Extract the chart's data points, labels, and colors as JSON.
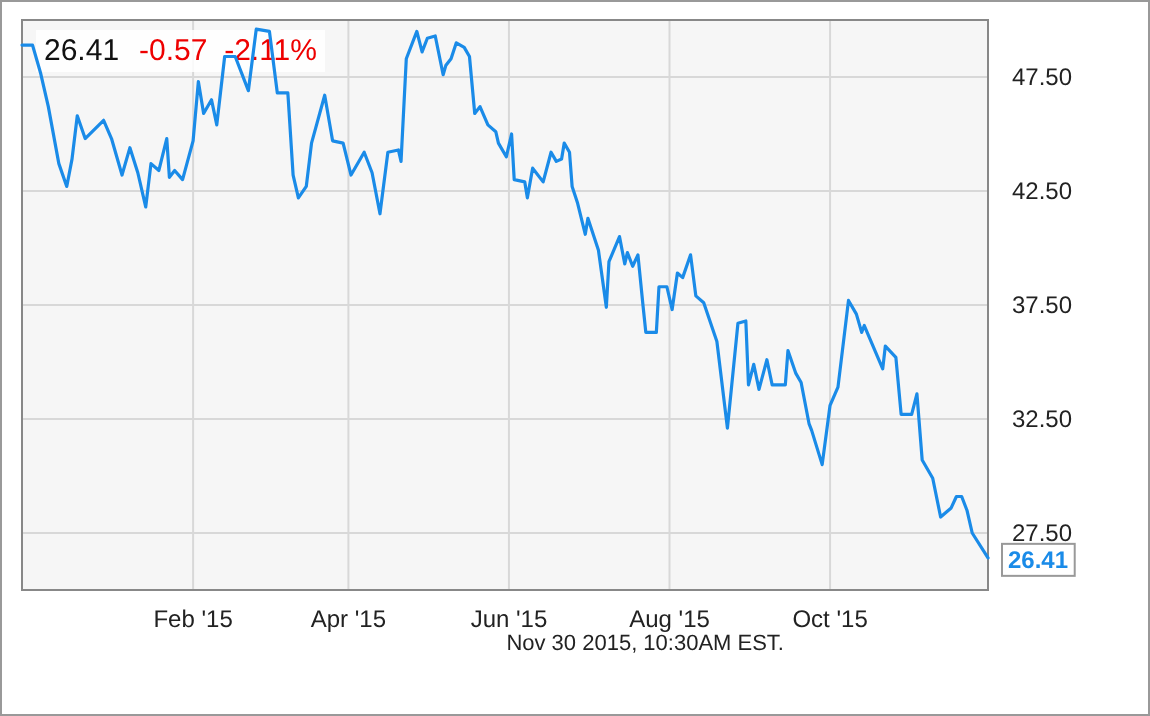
{
  "chart_data": {
    "type": "line",
    "title": "26.41",
    "subtitle": "-0.57  -2.11%",
    "annotations": [
      {
        "text": "26.41",
        "x": "2015-11-30",
        "y": 26.41
      },
      "Nov 30 2015, 10:30AM EST."
    ],
    "xlim": [
      "2014-11-28",
      "2015-11-30"
    ],
    "ylim": [
      25,
      50
    ],
    "xticks": [
      {
        "value": "2015-02-01",
        "label": "Feb '15"
      },
      {
        "value": "2015-04-01",
        "label": "Apr '15"
      },
      {
        "value": "2015-06-01",
        "label": "Jun '15"
      },
      {
        "value": "2015-08-01",
        "label": "Aug '15"
      },
      {
        "value": "2015-10-01",
        "label": "Oct '15"
      }
    ],
    "yticks": [
      {
        "value": 27.5,
        "label": "27.50"
      },
      {
        "value": 32.5,
        "label": "32.50"
      },
      {
        "value": 37.5,
        "label": "37.50"
      },
      {
        "value": 42.5,
        "label": "42.50"
      },
      {
        "value": 47.5,
        "label": "47.50"
      }
    ],
    "grid": true,
    "marker": "none",
    "line_style": "solid",
    "series": [
      {
        "color": "#1a8be8",
        "x": [
          "2014-11-28",
          "2014-12-02",
          "2014-12-05",
          "2014-12-08",
          "2014-12-12",
          "2014-12-15",
          "2014-12-17",
          "2014-12-19",
          "2014-12-22",
          "2014-12-29",
          "2015-01-01",
          "2015-01-05",
          "2015-01-08",
          "2015-01-11",
          "2015-01-14",
          "2015-01-16",
          "2015-01-19",
          "2015-01-22",
          "2015-01-23",
          "2015-01-25",
          "2015-01-28",
          "2015-02-01",
          "2015-02-03",
          "2015-02-05",
          "2015-02-08",
          "2015-02-10",
          "2015-02-13",
          "2015-02-17",
          "2015-02-22",
          "2015-02-25",
          "2015-03-02",
          "2015-03-05",
          "2015-03-09",
          "2015-03-11",
          "2015-03-13",
          "2015-03-16",
          "2015-03-18",
          "2015-03-23",
          "2015-03-26",
          "2015-03-30",
          "2015-04-02",
          "2015-04-07",
          "2015-04-10",
          "2015-04-13",
          "2015-04-16",
          "2015-04-20",
          "2015-04-21",
          "2015-04-23",
          "2015-04-27",
          "2015-04-29",
          "2015-05-01",
          "2015-05-04",
          "2015-05-07",
          "2015-05-08",
          "2015-05-10",
          "2015-05-12",
          "2015-05-15",
          "2015-05-17",
          "2015-05-19",
          "2015-05-21",
          "2015-05-24",
          "2015-05-27",
          "2015-05-28",
          "2015-05-31",
          "2015-06-02",
          "2015-06-03",
          "2015-06-07",
          "2015-06-08",
          "2015-06-10",
          "2015-06-14",
          "2015-06-17",
          "2015-06-19",
          "2015-06-21",
          "2015-06-22",
          "2015-06-24",
          "2015-06-25",
          "2015-06-27",
          "2015-06-30",
          "2015-07-01",
          "2015-07-05",
          "2015-07-08",
          "2015-07-09",
          "2015-07-13",
          "2015-07-15",
          "2015-07-16",
          "2015-07-18",
          "2015-07-20",
          "2015-07-22",
          "2015-07-23",
          "2015-07-27",
          "2015-07-28",
          "2015-07-31",
          "2015-08-02",
          "2015-08-04",
          "2015-08-06",
          "2015-08-09",
          "2015-08-11",
          "2015-08-14",
          "2015-08-19",
          "2015-08-23",
          "2015-08-27",
          "2015-08-30",
          "2015-08-31",
          "2015-09-02",
          "2015-09-04",
          "2015-09-07",
          "2015-09-09",
          "2015-09-14",
          "2015-09-15",
          "2015-09-18",
          "2015-09-20",
          "2015-09-23",
          "2015-09-24",
          "2015-09-28",
          "2015-10-01",
          "2015-10-04",
          "2015-10-08",
          "2015-10-11",
          "2015-10-13",
          "2015-10-14",
          "2015-10-21",
          "2015-10-22",
          "2015-10-26",
          "2015-10-28",
          "2015-11-01",
          "2015-11-03",
          "2015-11-05",
          "2015-11-09",
          "2015-11-12",
          "2015-11-16",
          "2015-11-18",
          "2015-11-20",
          "2015-11-22",
          "2015-11-24",
          "2015-11-30"
        ],
        "values": [
          48.9,
          48.9,
          47.7,
          46.2,
          43.7,
          42.7,
          43.9,
          45.8,
          44.8,
          45.6,
          44.8,
          43.2,
          44.4,
          43.3,
          41.8,
          43.7,
          43.4,
          44.8,
          43.1,
          43.4,
          43.0,
          44.7,
          47.3,
          45.9,
          46.5,
          45.4,
          48.4,
          48.4,
          46.9,
          49.6,
          49.5,
          46.8,
          46.8,
          43.2,
          42.2,
          42.7,
          44.6,
          46.7,
          44.7,
          44.6,
          43.2,
          44.2,
          43.3,
          41.5,
          44.2,
          44.3,
          43.8,
          48.3,
          49.5,
          48.6,
          49.2,
          49.3,
          47.6,
          48.0,
          48.3,
          49.0,
          48.8,
          48.4,
          45.9,
          46.2,
          45.4,
          45.1,
          44.6,
          44.0,
          45.0,
          43.0,
          42.9,
          42.2,
          43.5,
          42.9,
          44.2,
          43.8,
          43.9,
          44.6,
          44.2,
          42.7,
          42.0,
          40.6,
          41.3,
          39.9,
          37.4,
          39.4,
          40.5,
          39.3,
          39.8,
          39.2,
          39.7,
          37.4,
          36.3,
          36.3,
          38.3,
          38.3,
          37.3,
          38.9,
          38.7,
          39.7,
          37.9,
          37.6,
          35.9,
          32.1,
          36.7,
          36.8,
          34.0,
          34.9,
          33.8,
          35.1,
          34.0,
          34.0,
          35.5,
          34.5,
          34.1,
          32.3,
          32.0,
          30.5,
          33.1,
          33.9,
          37.7,
          37.1,
          36.3,
          36.6,
          34.7,
          35.7,
          35.2,
          32.7,
          32.7,
          33.6,
          30.7,
          29.9,
          28.2,
          28.6,
          29.1,
          29.1,
          28.5,
          27.5,
          26.41
        ]
      }
    ]
  }
}
